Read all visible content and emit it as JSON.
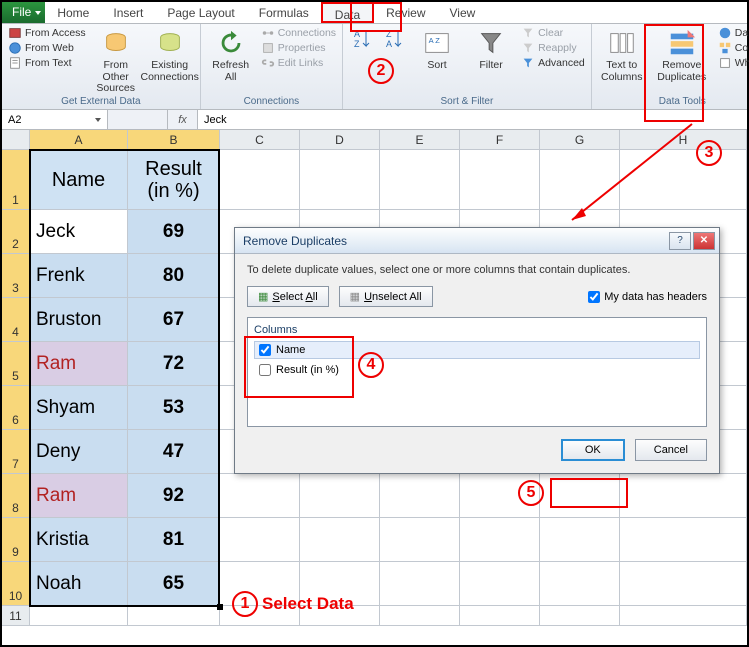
{
  "tabs": {
    "file": "File",
    "home": "Home",
    "insert": "Insert",
    "page_layout": "Page Layout",
    "formulas": "Formulas",
    "data": "Data",
    "review": "Review",
    "view": "View"
  },
  "ribbon": {
    "get_external": {
      "label": "Get External Data",
      "from_access": "From Access",
      "from_web": "From Web",
      "from_text": "From Text",
      "from_other": "From Other\nSources",
      "existing": "Existing\nConnections"
    },
    "connections": {
      "label": "Connections",
      "refresh": "Refresh\nAll",
      "connections": "Connections",
      "properties": "Properties",
      "edit_links": "Edit Links"
    },
    "sort_filter": {
      "label": "Sort & Filter",
      "sort": "Sort",
      "filter": "Filter",
      "clear": "Clear",
      "reapply": "Reapply",
      "advanced": "Advanced"
    },
    "data_tools": {
      "label": "Data Tools",
      "text_to_columns": "Text to\nColumns",
      "remove_dup": "Remove\nDuplicates",
      "data_val": "Data V",
      "conso": "Conso",
      "what": "What-"
    }
  },
  "namebox": "A2",
  "fx": "fx",
  "formula": "Jeck",
  "columns": {
    "A": "A",
    "B": "B",
    "C": "C",
    "D": "D",
    "E": "E",
    "F": "F",
    "G": "G",
    "H": "H"
  },
  "col_widths": {
    "A": 98,
    "B": 92,
    "C": 80,
    "D": 80,
    "E": 80,
    "F": 80,
    "G": 80,
    "H": 60
  },
  "headers": {
    "name": "Name",
    "result_l1": "Result",
    "result_l2": "(in %)"
  },
  "rows": [
    {
      "name": "Jeck",
      "result": "69",
      "dup": false
    },
    {
      "name": "Frenk",
      "result": "80",
      "dup": false
    },
    {
      "name": "Bruston",
      "result": "67",
      "dup": false
    },
    {
      "name": "Ram",
      "result": "72",
      "dup": true
    },
    {
      "name": "Shyam",
      "result": "53",
      "dup": false
    },
    {
      "name": "Deny",
      "result": "47",
      "dup": false
    },
    {
      "name": "Ram",
      "result": "92",
      "dup": true
    },
    {
      "name": "Kristia",
      "result": "81",
      "dup": false
    },
    {
      "name": "Noah",
      "result": "65",
      "dup": false
    }
  ],
  "dialog": {
    "title": "Remove Duplicates",
    "msg": "To delete duplicate values, select one or more columns that contain duplicates.",
    "select_all": "Select All",
    "unselect_all": "Unselect All",
    "my_data_headers": "My data has headers",
    "columns_label": "Columns",
    "col1": "Name",
    "col2": "Result (in %)",
    "ok": "OK",
    "cancel": "Cancel",
    "help": "?",
    "close": "✕"
  },
  "annotations": {
    "1": "1",
    "2": "2",
    "3": "3",
    "4": "4",
    "5": "5",
    "select_data": "Select Data"
  },
  "colors": {
    "anno": "#e00",
    "sel_header": "#f8d77a",
    "cell_sel": "#c9ddf0",
    "dup_bg": "#d9cde4",
    "dup_fg": "#b22222"
  }
}
